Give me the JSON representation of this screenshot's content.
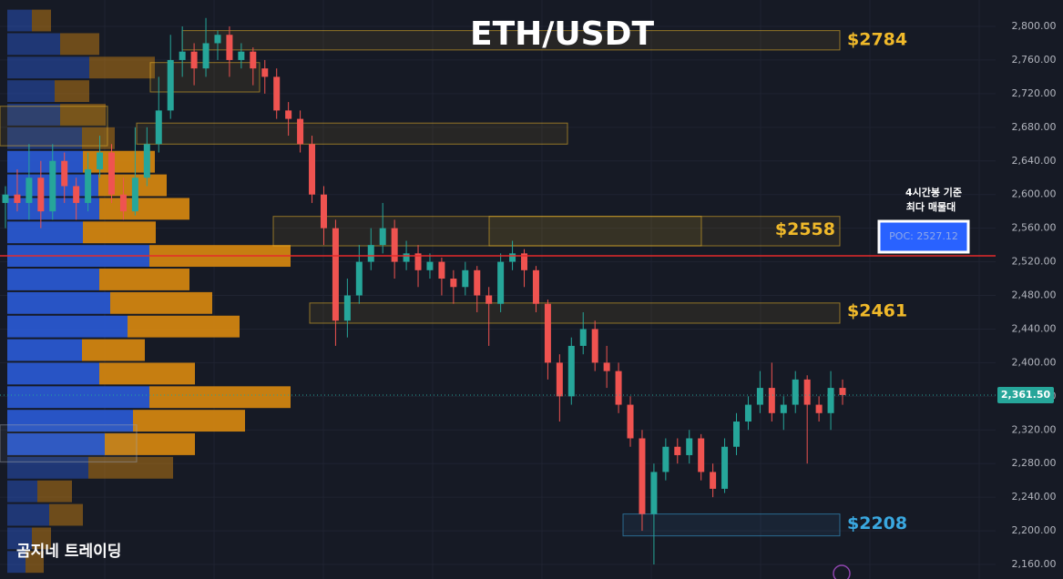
{
  "chart_data": {
    "type": "candlestick",
    "title": "ETH/USDT",
    "watermark": "곰지네 트레이딩",
    "ylim": [
      2142.7,
      2831.4
    ],
    "yticks": [
      {
        "value": 2160,
        "label": "2,160.00"
      },
      {
        "value": 2200,
        "label": "2,200.00"
      },
      {
        "value": 2240,
        "label": "2,240.00"
      },
      {
        "value": 2280,
        "label": "2,280.00"
      },
      {
        "value": 2320,
        "label": "2,320.00"
      },
      {
        "value": 2360,
        "label": "2,360.00"
      },
      {
        "value": 2400,
        "label": "2,400.00"
      },
      {
        "value": 2440,
        "label": "2,440.00"
      },
      {
        "value": 2480,
        "label": "2,480.00"
      },
      {
        "value": 2520,
        "label": "2,520.00"
      },
      {
        "value": 2560,
        "label": "2,560.00"
      },
      {
        "value": 2600,
        "label": "2,600.00"
      },
      {
        "value": 2640,
        "label": "2,640.00"
      },
      {
        "value": 2680,
        "label": "2,680.00"
      },
      {
        "value": 2720,
        "label": "2,720.00"
      },
      {
        "value": 2760,
        "label": "2,760.00"
      },
      {
        "value": 2800,
        "label": "2,800.00"
      }
    ],
    "up_color": "#26a69a",
    "down_color": "#ef5350",
    "candles": [
      [
        2590,
        2610,
        2560,
        2600
      ],
      [
        2600,
        2630,
        2580,
        2590
      ],
      [
        2590,
        2660,
        2570,
        2620
      ],
      [
        2620,
        2640,
        2560,
        2580
      ],
      [
        2580,
        2660,
        2570,
        2640
      ],
      [
        2640,
        2650,
        2590,
        2610
      ],
      [
        2610,
        2620,
        2570,
        2590
      ],
      [
        2590,
        2650,
        2580,
        2630
      ],
      [
        2630,
        2670,
        2620,
        2650
      ],
      [
        2650,
        2660,
        2590,
        2600
      ],
      [
        2600,
        2620,
        2570,
        2580
      ],
      [
        2580,
        2680,
        2575,
        2620
      ],
      [
        2620,
        2680,
        2610,
        2660
      ],
      [
        2660,
        2740,
        2650,
        2700
      ],
      [
        2700,
        2790,
        2690,
        2760
      ],
      [
        2760,
        2800,
        2740,
        2770
      ],
      [
        2770,
        2780,
        2730,
        2750
      ],
      [
        2750,
        2810,
        2740,
        2780
      ],
      [
        2780,
        2795,
        2760,
        2790
      ],
      [
        2790,
        2800,
        2740,
        2760
      ],
      [
        2760,
        2780,
        2750,
        2770
      ],
      [
        2770,
        2775,
        2730,
        2750
      ],
      [
        2750,
        2760,
        2720,
        2740
      ],
      [
        2740,
        2750,
        2690,
        2700
      ],
      [
        2700,
        2710,
        2670,
        2690
      ],
      [
        2690,
        2700,
        2650,
        2660
      ],
      [
        2660,
        2670,
        2590,
        2600
      ],
      [
        2600,
        2610,
        2540,
        2560
      ],
      [
        2560,
        2570,
        2420,
        2450
      ],
      [
        2450,
        2500,
        2430,
        2480
      ],
      [
        2480,
        2540,
        2470,
        2520
      ],
      [
        2520,
        2560,
        2510,
        2540
      ],
      [
        2540,
        2590,
        2530,
        2560
      ],
      [
        2560,
        2570,
        2500,
        2520
      ],
      [
        2520,
        2545,
        2510,
        2530
      ],
      [
        2530,
        2540,
        2490,
        2510
      ],
      [
        2510,
        2530,
        2500,
        2520
      ],
      [
        2520,
        2525,
        2480,
        2500
      ],
      [
        2500,
        2510,
        2470,
        2490
      ],
      [
        2490,
        2520,
        2480,
        2510
      ],
      [
        2510,
        2515,
        2460,
        2480
      ],
      [
        2480,
        2490,
        2420,
        2470
      ],
      [
        2470,
        2530,
        2460,
        2520
      ],
      [
        2520,
        2545,
        2510,
        2530
      ],
      [
        2530,
        2535,
        2490,
        2510
      ],
      [
        2510,
        2515,
        2460,
        2470
      ],
      [
        2470,
        2475,
        2380,
        2400
      ],
      [
        2400,
        2410,
        2330,
        2360
      ],
      [
        2360,
        2430,
        2350,
        2420
      ],
      [
        2420,
        2460,
        2410,
        2440
      ],
      [
        2440,
        2450,
        2390,
        2400
      ],
      [
        2400,
        2420,
        2370,
        2390
      ],
      [
        2390,
        2400,
        2340,
        2350
      ],
      [
        2350,
        2360,
        2300,
        2310
      ],
      [
        2310,
        2320,
        2200,
        2220
      ],
      [
        2220,
        2280,
        2160,
        2270
      ],
      [
        2270,
        2310,
        2260,
        2300
      ],
      [
        2300,
        2310,
        2280,
        2290
      ],
      [
        2290,
        2320,
        2280,
        2310
      ],
      [
        2310,
        2315,
        2260,
        2270
      ],
      [
        2270,
        2280,
        2240,
        2250
      ],
      [
        2250,
        2310,
        2245,
        2300
      ],
      [
        2300,
        2340,
        2290,
        2330
      ],
      [
        2330,
        2360,
        2320,
        2350
      ],
      [
        2350,
        2390,
        2340,
        2370
      ],
      [
        2370,
        2400,
        2330,
        2340
      ],
      [
        2340,
        2360,
        2320,
        2350
      ],
      [
        2350,
        2390,
        2340,
        2380
      ],
      [
        2380,
        2385,
        2280,
        2350
      ],
      [
        2350,
        2360,
        2330,
        2340
      ],
      [
        2340,
        2390,
        2320,
        2370
      ],
      [
        2370,
        2380,
        2350,
        2361.5
      ]
    ],
    "last_price": {
      "value": 2361.5,
      "label": "2,361.50"
    },
    "poc": {
      "value": 2527.12,
      "label": "POC: 2527.12",
      "color": "#e52b2b"
    },
    "annotation": [
      "4시간봉 기준",
      "최다 매물대"
    ],
    "zones": [
      {
        "low": 2772,
        "high": 2795,
        "value": 2784,
        "label": "$2784",
        "color": "#f0b92a"
      },
      {
        "low": 2722,
        "high": 2757,
        "color": "#f0b92a"
      },
      {
        "low": 2658,
        "high": 2705,
        "color": "#f0b92a"
      },
      {
        "low": 2660,
        "high": 2685,
        "color": "#f0b92a"
      },
      {
        "low": 2539,
        "high": 2574,
        "value": 2558,
        "label": "$2558",
        "color": "#f0b92a"
      },
      {
        "low": 2539,
        "high": 2574,
        "color": "#f0b92a"
      },
      {
        "low": 2447,
        "high": 2471,
        "value": 2461,
        "label": "$2461",
        "color": "#f0b92a"
      },
      {
        "low": 2194,
        "high": 2220,
        "value": 2208,
        "label": "$2208",
        "color": "#3aa8e0"
      },
      {
        "low": 2282,
        "high": 2326,
        "color": "#9aa0ac"
      }
    ],
    "volume_profile": {
      "row_height": 28,
      "buy_color": "#2a5bd7",
      "sell_color": "#d98a10",
      "levels": [
        2807,
        2779,
        2751,
        2723,
        2695,
        2667,
        2639,
        2611,
        2583,
        2555,
        2527,
        2499,
        2471,
        2443,
        2415,
        2387,
        2359,
        2331,
        2303,
        2275,
        2247,
        2219,
        2191,
        2163
      ],
      "buy": [
        27,
        58,
        90,
        52,
        58,
        82,
        83,
        100,
        101,
        83,
        156,
        101,
        113,
        132,
        82,
        101,
        156,
        138,
        107,
        89,
        33,
        46,
        27,
        20
      ],
      "sell": [
        21,
        43,
        72,
        38,
        50,
        36,
        79,
        75,
        99,
        80,
        155,
        99,
        112,
        123,
        69,
        105,
        155,
        123,
        99,
        93,
        38,
        37,
        21,
        20
      ]
    }
  }
}
